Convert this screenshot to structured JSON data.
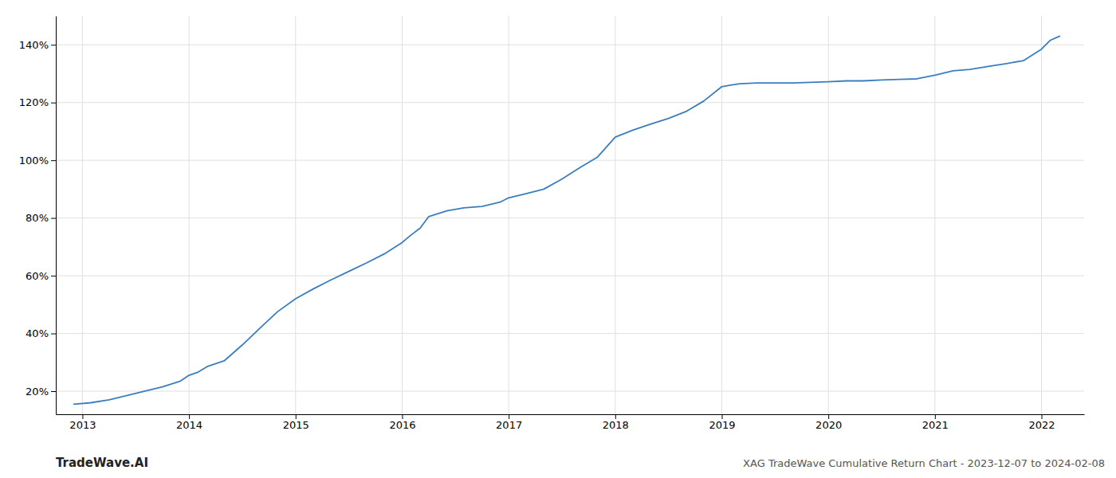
{
  "chart_data": {
    "type": "line",
    "title": "XAG TradeWave Cumulative Return Chart - 2023-12-07 to 2024-02-08",
    "annotations": [
      "TradeWave.AI"
    ],
    "color": "#3a7ebf",
    "grid": true,
    "xlim": [
      2012.75,
      2022.4
    ],
    "ylim": [
      12,
      150
    ],
    "xticks": [
      2013,
      2014,
      2015,
      2016,
      2017,
      2018,
      2019,
      2020,
      2021,
      2022
    ],
    "yticks": [
      {
        "value": 20,
        "label": "20%"
      },
      {
        "value": 40,
        "label": "40%"
      },
      {
        "value": 60,
        "label": "60%"
      },
      {
        "value": 80,
        "label": "80%"
      },
      {
        "value": 100,
        "label": "100%"
      },
      {
        "value": 120,
        "label": "120%"
      },
      {
        "value": 140,
        "label": "140%"
      }
    ],
    "x": [
      2012.92,
      2013.08,
      2013.25,
      2013.42,
      2013.58,
      2013.75,
      2013.92,
      2014.0,
      2014.08,
      2014.17,
      2014.33,
      2014.5,
      2014.67,
      2014.83,
      2015.0,
      2015.17,
      2015.33,
      2015.5,
      2015.67,
      2015.83,
      2016.0,
      2016.08,
      2016.17,
      2016.25,
      2016.42,
      2016.58,
      2016.75,
      2016.92,
      2017.0,
      2017.17,
      2017.33,
      2017.5,
      2017.67,
      2017.83,
      2018.0,
      2018.17,
      2018.33,
      2018.5,
      2018.67,
      2018.83,
      2019.0,
      2019.08,
      2019.17,
      2019.33,
      2019.5,
      2019.67,
      2019.83,
      2020.0,
      2020.17,
      2020.33,
      2020.5,
      2020.67,
      2020.83,
      2021.0,
      2021.17,
      2021.33,
      2021.5,
      2021.67,
      2021.83,
      2022.0,
      2022.08,
      2022.17
    ],
    "values": [
      15.5,
      16.0,
      17.0,
      18.5,
      20.0,
      21.5,
      23.5,
      25.5,
      26.5,
      28.5,
      30.5,
      36.0,
      42.0,
      47.5,
      52.0,
      55.5,
      58.5,
      61.5,
      64.5,
      67.5,
      71.5,
      74.0,
      76.5,
      80.5,
      82.5,
      83.5,
      84.0,
      85.5,
      87.0,
      88.5,
      90.0,
      93.5,
      97.5,
      101.0,
      108.0,
      110.5,
      112.5,
      114.5,
      117.0,
      120.5,
      125.5,
      126.0,
      126.5,
      126.8,
      126.8,
      126.8,
      127.0,
      127.2,
      127.5,
      127.5,
      127.8,
      128.0,
      128.2,
      129.5,
      131.0,
      131.5,
      132.5,
      133.5,
      134.5,
      138.5,
      141.5,
      143.0
    ]
  }
}
